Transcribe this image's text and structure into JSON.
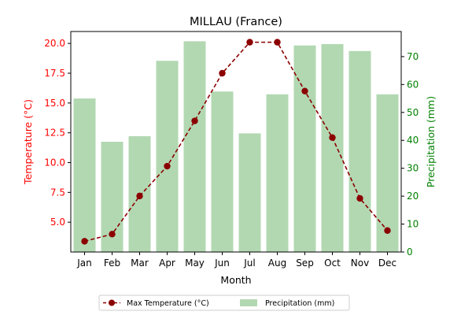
{
  "chart_data": {
    "type": "bar+line",
    "title": "MILLAU (France)",
    "xlabel": "Month",
    "categories": [
      "Jan",
      "Feb",
      "Mar",
      "Apr",
      "May",
      "Jun",
      "Jul",
      "Aug",
      "Sep",
      "Oct",
      "Nov",
      "Dec"
    ],
    "y_left": {
      "label": "Temperature (°C)",
      "color": "#ff0000",
      "lim": [
        2.5,
        21.0
      ],
      "ticks": [
        "5.0",
        "7.5",
        "10.0",
        "12.5",
        "15.0",
        "17.5",
        "20.0"
      ],
      "tick_values": [
        5.0,
        7.5,
        10.0,
        12.5,
        15.0,
        17.5,
        20.0
      ]
    },
    "y_right": {
      "label": "Precipitation (mm)",
      "color": "#008000",
      "lim": [
        0,
        79
      ],
      "ticks": [
        "0",
        "10",
        "20",
        "30",
        "40",
        "50",
        "60",
        "70"
      ],
      "tick_values": [
        0,
        10,
        20,
        30,
        40,
        50,
        60,
        70
      ]
    },
    "series": [
      {
        "name": "Max Temperature (°C)",
        "type": "line",
        "axis": "left",
        "color": "#8b0000",
        "style": "dashed",
        "marker": "circle",
        "values": [
          3.4,
          4.0,
          7.2,
          9.7,
          13.5,
          17.5,
          20.1,
          20.1,
          16.0,
          12.1,
          7.0,
          4.3
        ]
      },
      {
        "name": "Precipitation (mm)",
        "type": "bar",
        "axis": "right",
        "color": "#b2d8b2",
        "values": [
          55,
          39.5,
          41.5,
          68.5,
          75.5,
          57.5,
          42.5,
          56.5,
          74.0,
          74.5,
          72.0,
          56.5
        ]
      }
    ],
    "legend": {
      "placement": "bottom-center",
      "columns": 2
    },
    "grid": false
  }
}
